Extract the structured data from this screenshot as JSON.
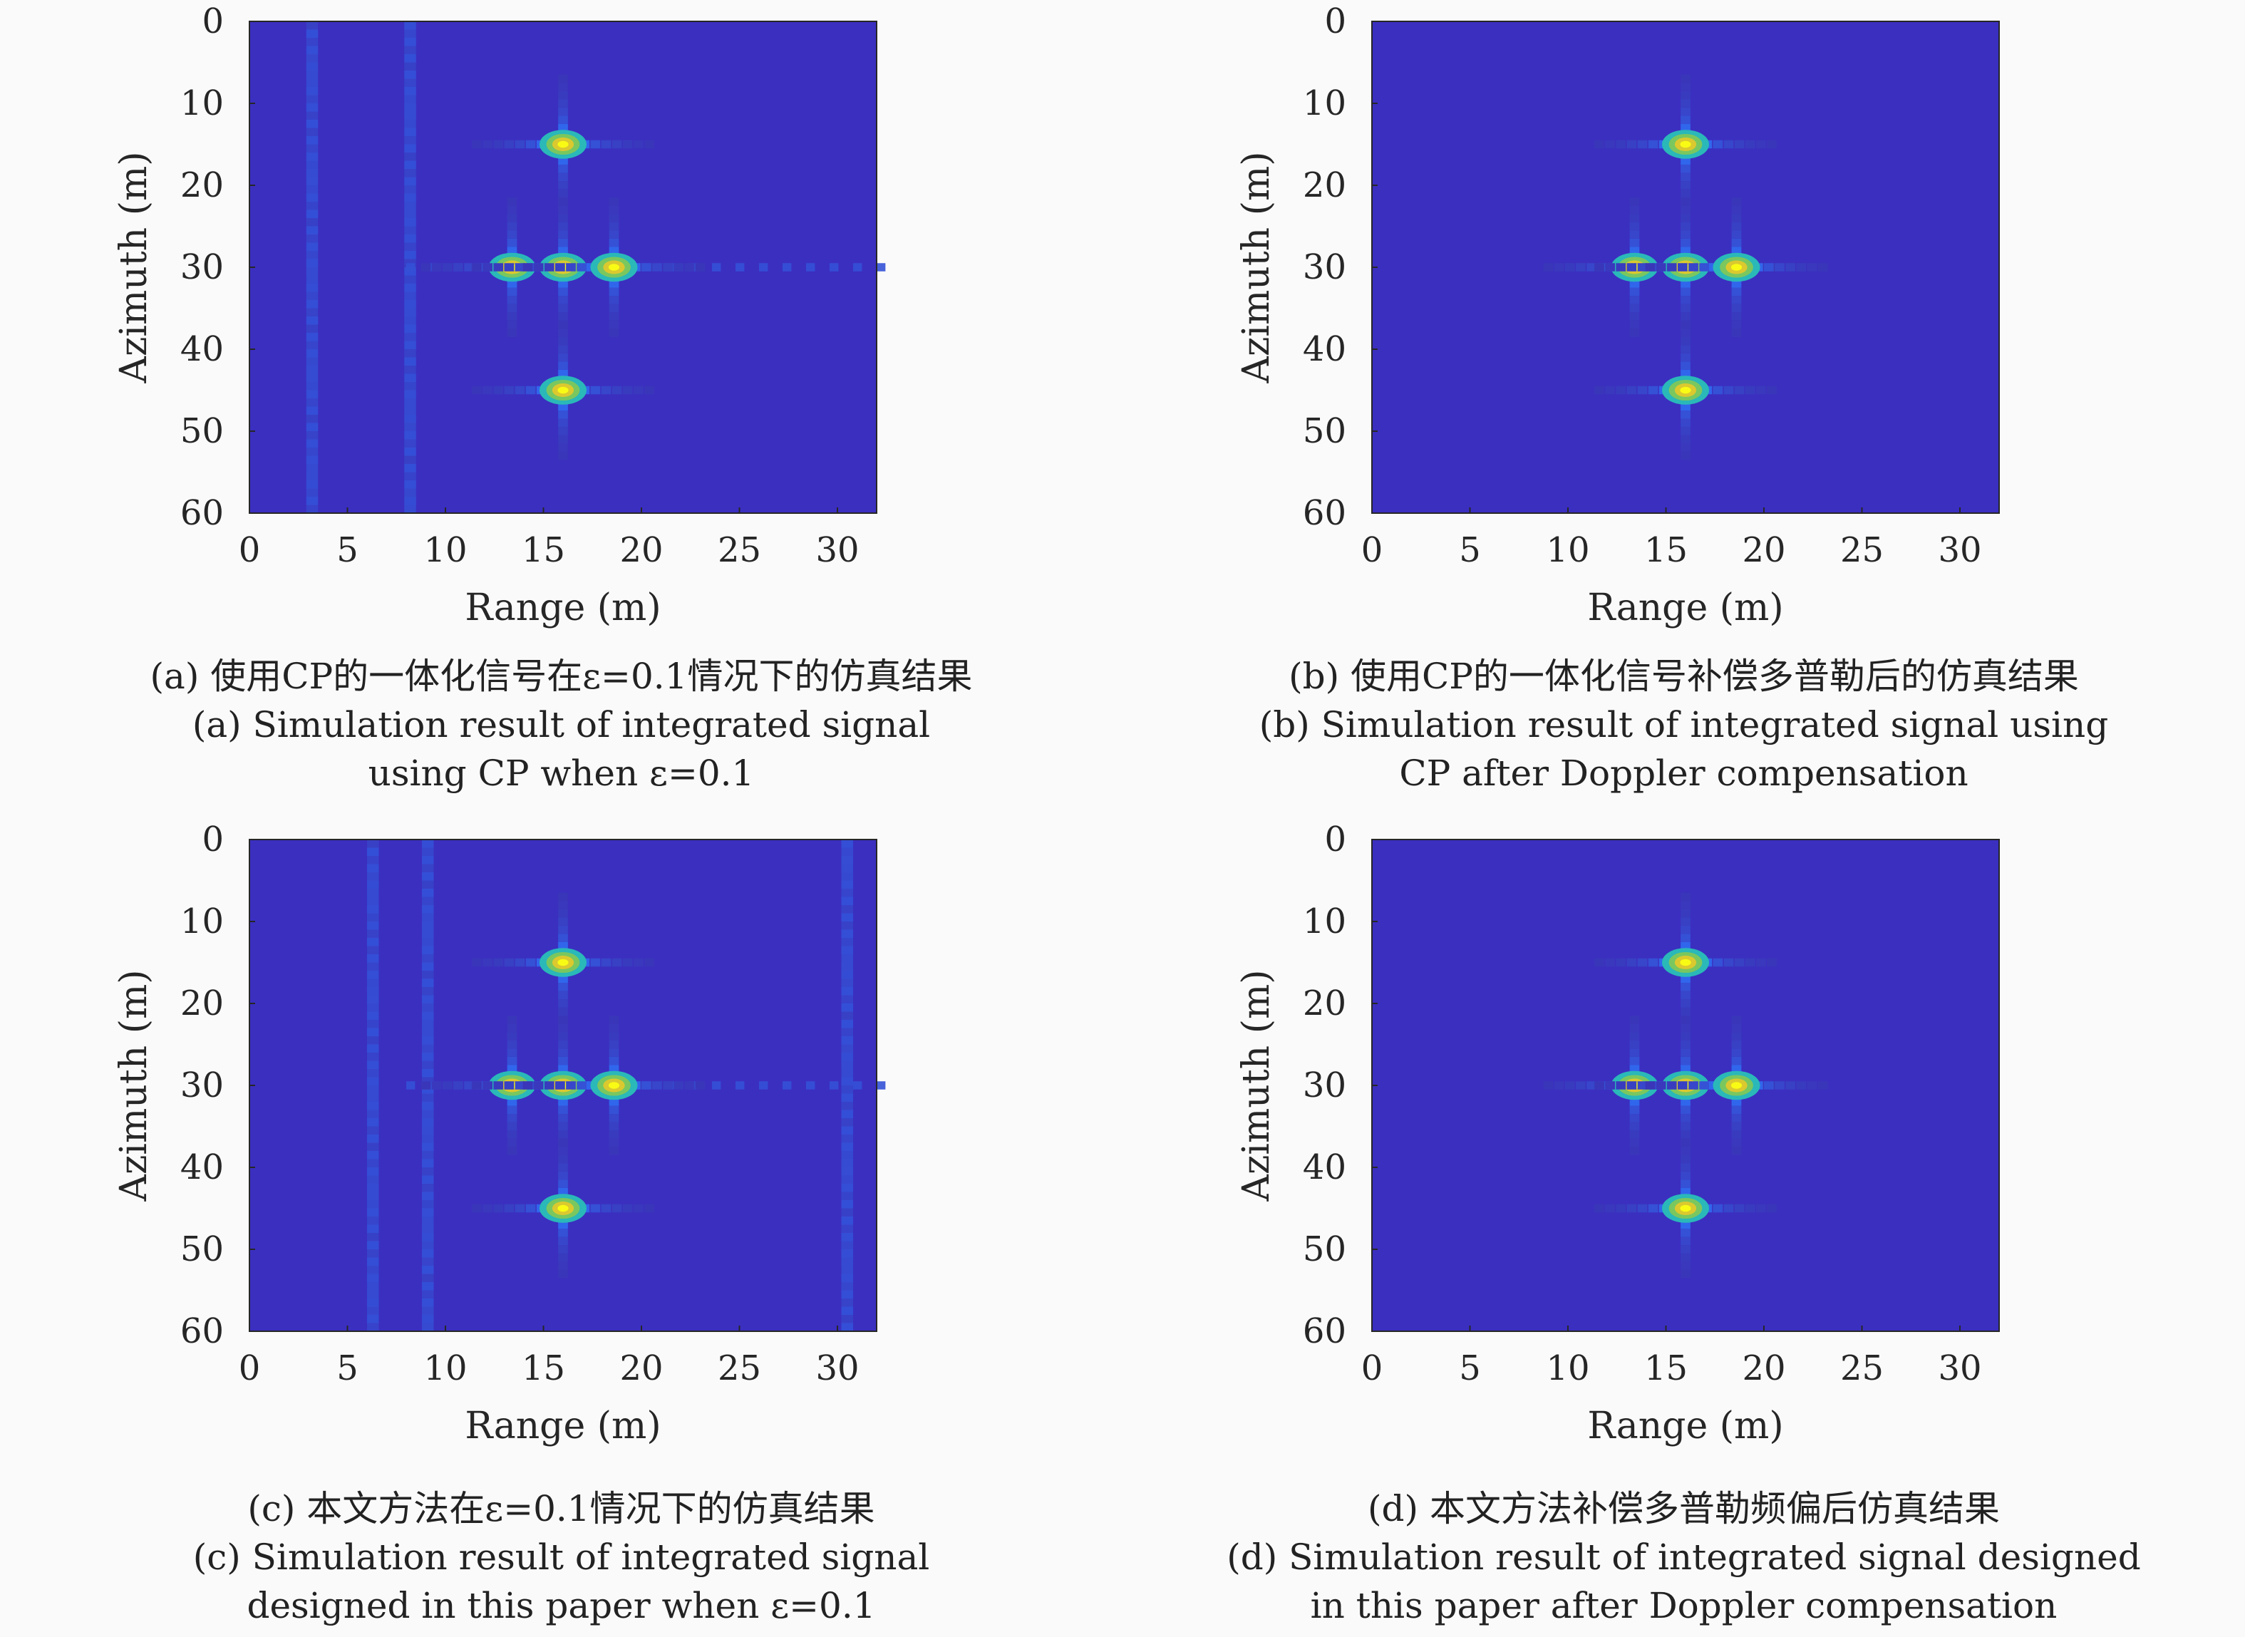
{
  "colors": {
    "background": "#3b2fc0",
    "colormap": [
      "#3e26a8",
      "#2e6ef5",
      "#1ab2d0",
      "#5bc86e",
      "#d8c332",
      "#f9fb15"
    ]
  },
  "chart_data": [
    {
      "type": "heatmap",
      "xlabel": "Range (m)",
      "ylabel": "Azimuth (m)",
      "xlim": [
        0,
        32
      ],
      "ylim": [
        0,
        60
      ],
      "xticks": [
        "0",
        "5",
        "10",
        "15",
        "20",
        "25",
        "30"
      ],
      "yticks": [
        "0",
        "10",
        "20",
        "30",
        "40",
        "50",
        "60"
      ],
      "targets": [
        {
          "x": 16,
          "y": 15
        },
        {
          "x": 13.4,
          "y": 30
        },
        {
          "x": 16,
          "y": 30
        },
        {
          "x": 18.6,
          "y": 30
        },
        {
          "x": 16,
          "y": 45
        }
      ],
      "stripes": [
        3.2,
        8.2
      ],
      "caption_cn": "(a) 使用CP的一体化信号在ε=0.1情况下的仿真结果",
      "caption_en1": "(a) Simulation result of integrated signal",
      "caption_en2": "using CP when ε=0.1"
    },
    {
      "type": "heatmap",
      "xlabel": "Range (m)",
      "ylabel": "Azimuth (m)",
      "xlim": [
        0,
        32
      ],
      "ylim": [
        0,
        60
      ],
      "xticks": [
        "0",
        "5",
        "10",
        "15",
        "20",
        "25",
        "30"
      ],
      "yticks": [
        "0",
        "10",
        "20",
        "30",
        "40",
        "50",
        "60"
      ],
      "targets": [
        {
          "x": 16,
          "y": 15
        },
        {
          "x": 13.4,
          "y": 30
        },
        {
          "x": 16,
          "y": 30
        },
        {
          "x": 18.6,
          "y": 30
        },
        {
          "x": 16,
          "y": 45
        }
      ],
      "stripes": [],
      "caption_cn": "(b) 使用CP的一体化信号补偿多普勒后的仿真结果",
      "caption_en1": "(b) Simulation result of integrated signal using",
      "caption_en2": "CP after Doppler compensation"
    },
    {
      "type": "heatmap",
      "xlabel": "Range (m)",
      "ylabel": "Azimuth (m)",
      "xlim": [
        0,
        32
      ],
      "ylim": [
        0,
        60
      ],
      "xticks": [
        "0",
        "5",
        "10",
        "15",
        "20",
        "25",
        "30"
      ],
      "yticks": [
        "0",
        "10",
        "20",
        "30",
        "40",
        "50",
        "60"
      ],
      "targets": [
        {
          "x": 16,
          "y": 15
        },
        {
          "x": 13.4,
          "y": 30
        },
        {
          "x": 16,
          "y": 30
        },
        {
          "x": 18.6,
          "y": 30
        },
        {
          "x": 16,
          "y": 45
        }
      ],
      "stripes": [
        6.3,
        9.1,
        30.5
      ],
      "caption_cn": "(c) 本文方法在ε=0.1情况下的仿真结果",
      "caption_en1": "(c) Simulation result of integrated signal",
      "caption_en2": "designed in this paper when ε=0.1"
    },
    {
      "type": "heatmap",
      "xlabel": "Range (m)",
      "ylabel": "Azimuth (m)",
      "xlim": [
        0,
        32
      ],
      "ylim": [
        0,
        60
      ],
      "xticks": [
        "0",
        "5",
        "10",
        "15",
        "20",
        "25",
        "30"
      ],
      "yticks": [
        "0",
        "10",
        "20",
        "30",
        "40",
        "50",
        "60"
      ],
      "targets": [
        {
          "x": 16,
          "y": 15
        },
        {
          "x": 13.4,
          "y": 30
        },
        {
          "x": 16,
          "y": 30
        },
        {
          "x": 18.6,
          "y": 30
        },
        {
          "x": 16,
          "y": 45
        }
      ],
      "stripes": [],
      "caption_cn": "(d) 本文方法补偿多普勒频偏后仿真结果",
      "caption_en1": "(d) Simulation result of integrated signal designed",
      "caption_en2": "in this paper after Doppler compensation"
    }
  ]
}
